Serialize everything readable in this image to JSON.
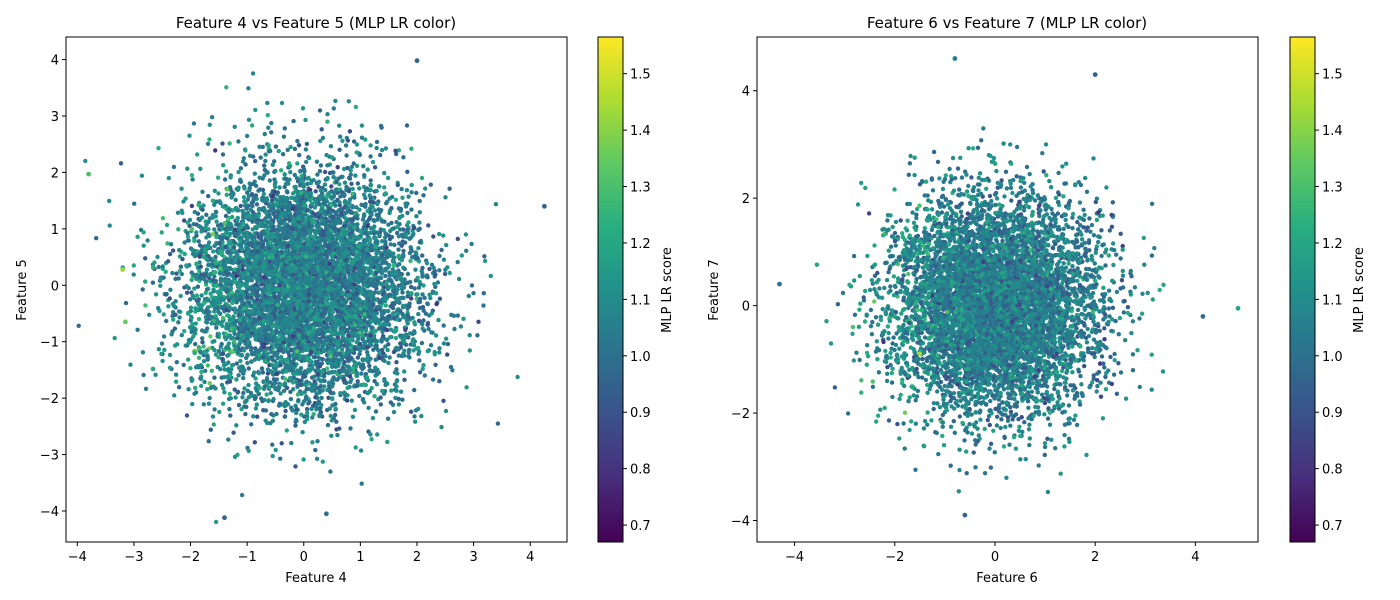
{
  "chart_data": [
    {
      "type": "scatter",
      "title": "Feature 4 vs Feature 5 (MLP LR color)",
      "xlabel": "Feature 4",
      "ylabel": "Feature 5",
      "xlim": [
        -4.2,
        4.65
      ],
      "ylim": [
        -4.55,
        4.4
      ],
      "xticks": [
        -4,
        -3,
        -2,
        -1,
        0,
        1,
        2,
        3,
        4
      ],
      "yticks": [
        -4,
        -3,
        -2,
        -1,
        0,
        1,
        2,
        3,
        4
      ],
      "colorbar": {
        "label": "MLP LR score",
        "range": [
          0.67,
          1.565
        ],
        "ticks": [
          0.7,
          0.8,
          0.9,
          1.0,
          1.1,
          1.2,
          1.3,
          1.4,
          1.5
        ],
        "colormap": "viridis"
      },
      "points_summary": {
        "distribution": "approximately standard bivariate normal, ~10000 points",
        "x_mean": 0.0,
        "x_std": 1.0,
        "y_mean": 0.0,
        "y_std": 1.0,
        "score_mean": 1.05,
        "score_std": 0.09
      },
      "notable_points": [
        {
          "x": -3.2,
          "y": 0.28,
          "score": 1.42
        },
        {
          "x": -3.15,
          "y": -0.65,
          "score": 1.35
        },
        {
          "x": -3.8,
          "y": 1.97,
          "score": 1.3
        },
        {
          "x": 4.25,
          "y": 1.4,
          "score": 0.95
        },
        {
          "x": -1.4,
          "y": -4.12,
          "score": 0.95
        },
        {
          "x": 2.0,
          "y": 3.98,
          "score": 0.95
        },
        {
          "x": 0.4,
          "y": -4.05,
          "score": 1.0
        }
      ]
    },
    {
      "type": "scatter",
      "title": "Feature 6 vs Feature 7 (MLP LR color)",
      "xlabel": "Feature 6",
      "ylabel": "Feature 7",
      "xlim": [
        -4.75,
        5.25
      ],
      "ylim": [
        -4.4,
        5.0
      ],
      "xticks": [
        -4,
        -2,
        0,
        2,
        4
      ],
      "yticks": [
        -4,
        -2,
        0,
        2,
        4
      ],
      "colorbar": {
        "label": "MLP LR score",
        "range": [
          0.67,
          1.565
        ],
        "ticks": [
          0.7,
          0.8,
          0.9,
          1.0,
          1.1,
          1.2,
          1.3,
          1.4,
          1.5
        ],
        "colormap": "viridis"
      },
      "points_summary": {
        "distribution": "approximately standard bivariate normal, ~10000 points",
        "x_mean": 0.0,
        "x_std": 1.0,
        "y_mean": 0.0,
        "y_std": 1.0,
        "score_mean": 1.05,
        "score_std": 0.09
      },
      "notable_points": [
        {
          "x": 4.85,
          "y": -0.05,
          "score": 1.2
        },
        {
          "x": -4.3,
          "y": 0.4,
          "score": 1.0
        },
        {
          "x": -0.8,
          "y": 4.6,
          "score": 1.05
        },
        {
          "x": 2.0,
          "y": 4.3,
          "score": 0.95
        },
        {
          "x": -0.6,
          "y": -3.9,
          "score": 0.95
        },
        {
          "x": 4.15,
          "y": -0.2,
          "score": 1.0
        },
        {
          "x": -1.5,
          "y": -0.9,
          "score": 1.45
        }
      ]
    }
  ]
}
